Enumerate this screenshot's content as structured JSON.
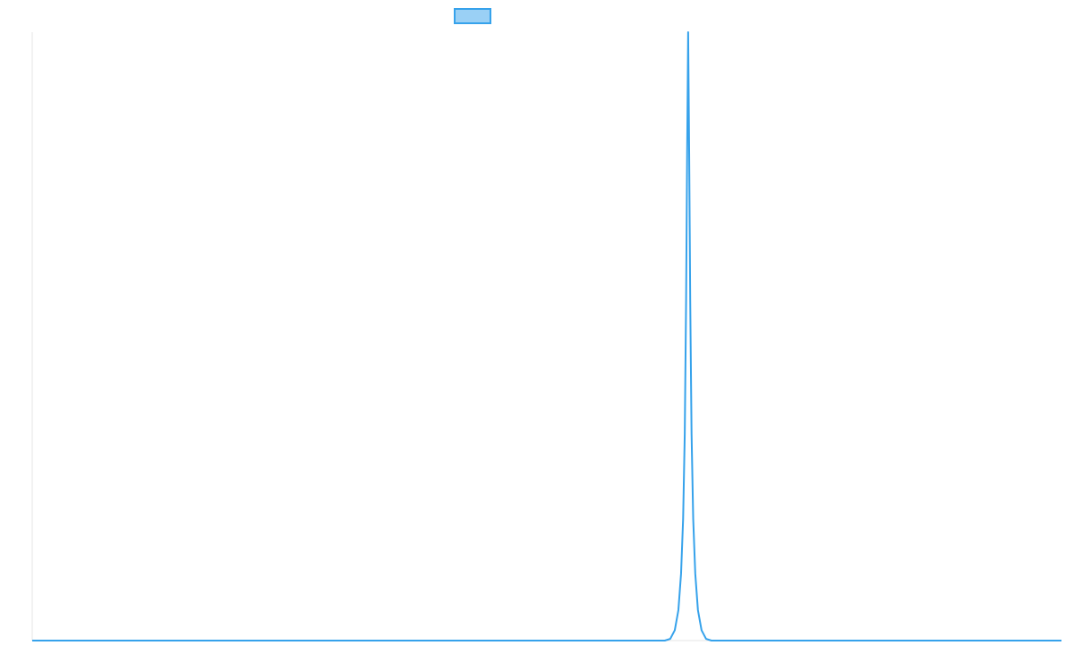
{
  "chart_data": {
    "type": "line",
    "title": "",
    "xlabel": "",
    "ylabel": "",
    "grid": false,
    "legend": {
      "placement": "top-center",
      "entries": [
        {
          "label": "",
          "color": "#36a2eb",
          "fill": "#9ad0f5"
        }
      ]
    },
    "xlim": [
      0,
      1
    ],
    "ylim": [
      0,
      1
    ],
    "series": [
      {
        "color": "#36a2eb",
        "x": [
          0,
          0.6087,
          0.6146,
          0.6199,
          0.6243,
          0.6278,
          0.6304,
          0.6324,
          0.634,
          0.6353,
          0.6363,
          0.6373,
          0.6383,
          0.6393,
          0.6406,
          0.6422,
          0.6442,
          0.6468,
          0.6503,
          0.6547,
          0.6599,
          0.6621,
          1
        ],
        "y": [
          0,
          0,
          0,
          0.0029,
          0.017,
          0.05,
          0.11,
          0.2,
          0.34,
          0.56,
          0.8,
          1.0,
          0.8,
          0.56,
          0.34,
          0.2,
          0.11,
          0.05,
          0.017,
          0.0029,
          0,
          0,
          0
        ]
      }
    ]
  },
  "colors": {
    "axis": "#e5e5e5",
    "line": "#36a2eb",
    "legend_fill": "#9ad0f5"
  }
}
